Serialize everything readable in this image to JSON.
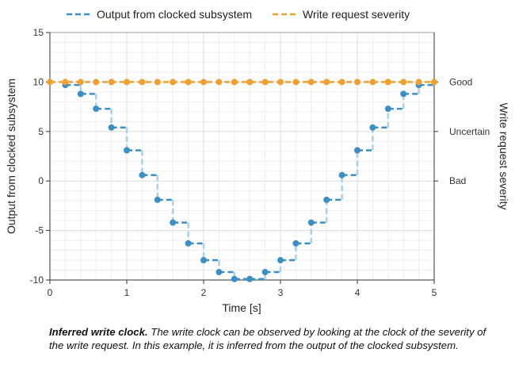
{
  "chart_data": {
    "type": "line",
    "xlabel": "Time [s]",
    "ylabel": "Output from clocked subsystem",
    "y2label": "Write request severity",
    "xlim": [
      0,
      5
    ],
    "ylim": [
      -10,
      15
    ],
    "xticks": [
      "0",
      "1",
      "2",
      "3",
      "4",
      "5"
    ],
    "yticks": [
      "-10",
      "-5",
      "0",
      "5",
      "10",
      "15"
    ],
    "y2ticks": [
      {
        "label": "Good",
        "value": 10
      },
      {
        "label": "Uncertain",
        "value": 5
      },
      {
        "label": "Bad",
        "value": 0
      }
    ],
    "grid": true,
    "legend_position": "top",
    "series": [
      {
        "name": "Output from clocked subsystem",
        "style": "stairs-dashed",
        "color": "#3b8fc4",
        "x": [
          0.2,
          0.4,
          0.6,
          0.8,
          1.0,
          1.2,
          1.4,
          1.6,
          1.8,
          2.0,
          2.2,
          2.4,
          2.6,
          2.8,
          3.0,
          3.2,
          3.4,
          3.6,
          3.8,
          4.0,
          4.2,
          4.4,
          4.6,
          4.8
        ],
        "values": [
          9.7,
          8.8,
          7.3,
          5.4,
          3.1,
          0.6,
          -1.9,
          -4.2,
          -6.3,
          -8.0,
          -9.2,
          -9.9,
          -9.9,
          -9.2,
          -8.0,
          -6.3,
          -4.2,
          -1.9,
          0.6,
          3.1,
          5.4,
          7.3,
          8.8,
          9.7
        ]
      },
      {
        "name": "Write request severity",
        "style": "dashed",
        "color": "#f0a030",
        "x": [
          0.0,
          0.2,
          0.4,
          0.6,
          0.8,
          1.0,
          1.2,
          1.4,
          1.6,
          1.8,
          2.0,
          2.2,
          2.4,
          2.6,
          2.8,
          3.0,
          3.2,
          3.4,
          3.6,
          3.8,
          4.0,
          4.2,
          4.4,
          4.6,
          4.8,
          5.0
        ],
        "values": [
          10,
          10,
          10,
          10,
          10,
          10,
          10,
          10,
          10,
          10,
          10,
          10,
          10,
          10,
          10,
          10,
          10,
          10,
          10,
          10,
          10,
          10,
          10,
          10,
          10,
          10
        ]
      }
    ]
  },
  "caption": {
    "bold": "Inferred write clock.",
    "text": " The write clock can be observed by looking at the clock of the severity of the write request. In this example, it is inferred from the output of the clocked subsystem."
  }
}
